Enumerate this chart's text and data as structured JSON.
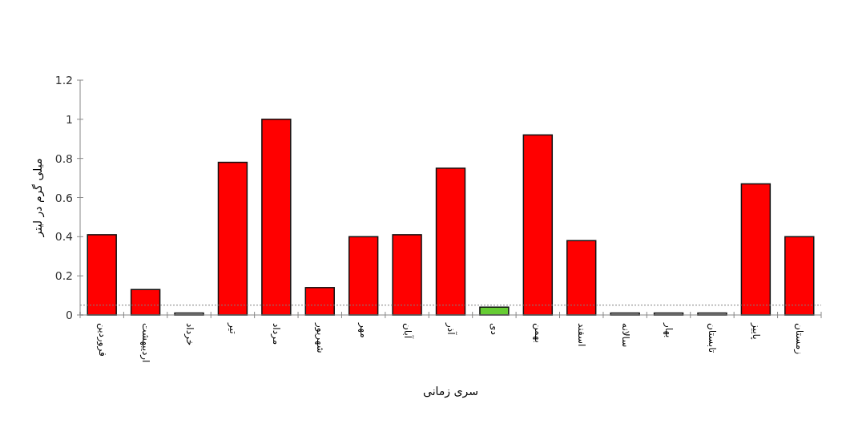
{
  "chart_data": {
    "type": "bar",
    "xlabel": "سری زمانی",
    "ylabel": "میلی گرم در لیتر",
    "categories": [
      "فروردین",
      "اردیبهشت",
      "خرداد",
      "تیر",
      "مرداد",
      "شهریور",
      "مهر",
      "آبان",
      "آذر",
      "دی",
      "بهمن",
      "اسفند",
      "سالانه",
      "بهار",
      "تابستان",
      "پاییز",
      "زمستان"
    ],
    "values": [
      0.41,
      0.13,
      0.01,
      0.78,
      1.0,
      0.14,
      0.4,
      0.41,
      0.75,
      0.04,
      0.92,
      0.38,
      0.01,
      0.01,
      0.01,
      0.67,
      0.4
    ],
    "colors": [
      "#ff0000",
      "#ff0000",
      "#c0c0c0",
      "#ff0000",
      "#ff0000",
      "#ff0000",
      "#ff0000",
      "#ff0000",
      "#ff0000",
      "#66cc33",
      "#ff0000",
      "#ff0000",
      "#c0c0c0",
      "#c0c0c0",
      "#c0c0c0",
      "#ff0000",
      "#ff0000"
    ],
    "ylim": [
      0,
      1.2
    ],
    "yticks": [
      0,
      0.2,
      0.4,
      0.6,
      0.8,
      1,
      1.2
    ],
    "ref_lines": [
      {
        "axis": "y",
        "value": 0.05,
        "color": "#808080",
        "line_style": "dotted"
      }
    ]
  }
}
